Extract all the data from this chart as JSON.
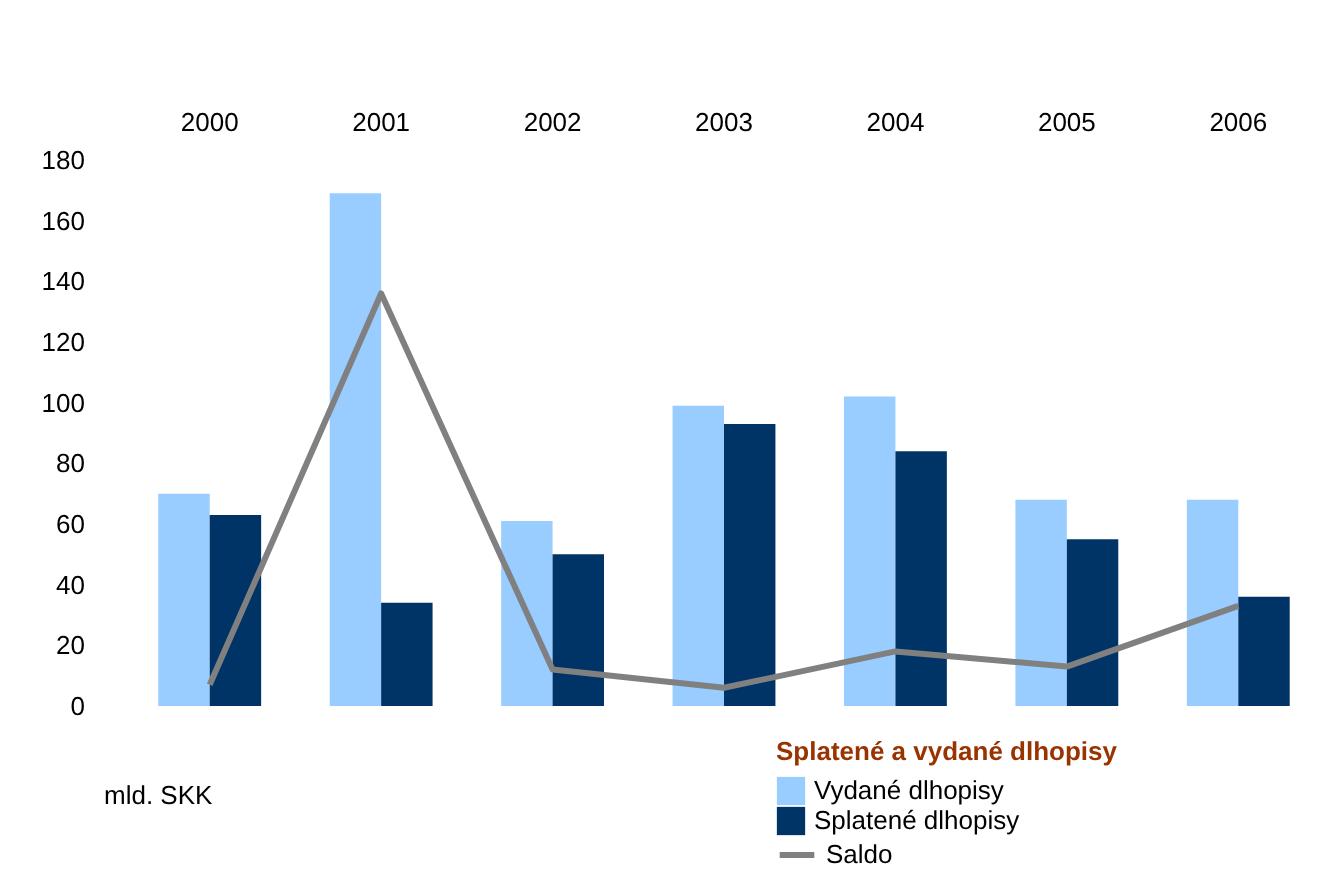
{
  "chart_data": {
    "type": "bar",
    "categories": [
      "2000",
      "2001",
      "2002",
      "2003",
      "2004",
      "2005",
      "2006"
    ],
    "series": [
      {
        "name": "Vydané dlhopisy",
        "color": "#99ccff",
        "values": [
          70,
          169,
          61,
          99,
          102,
          68,
          68
        ]
      },
      {
        "name": "Splatené dlhopisy",
        "color": "#003366",
        "values": [
          63,
          34,
          50,
          93,
          84,
          55,
          36
        ]
      },
      {
        "name": "Saldo",
        "type": "line",
        "color": "#808080",
        "values": [
          7,
          136,
          12,
          6,
          18,
          13,
          33
        ]
      }
    ],
    "legend_title": "Splatené a vydané dlhopisy",
    "annotations": [
      "mld. SKK"
    ],
    "ylim": [
      0,
      180
    ],
    "yticks": [
      0,
      20,
      40,
      60,
      80,
      100,
      120,
      140,
      160,
      180
    ],
    "grid": false,
    "legend": "bottom right",
    "marker": "none",
    "line_style": "solid"
  }
}
